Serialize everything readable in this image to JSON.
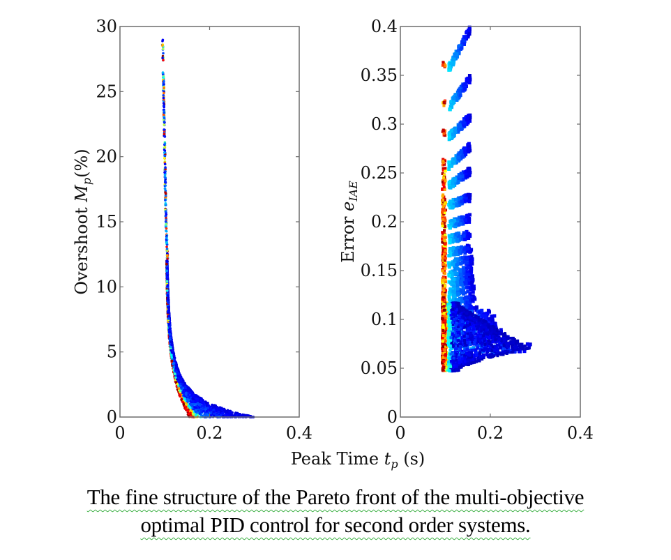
{
  "chart_data": [
    {
      "type": "scatter",
      "panel": "left",
      "title": "",
      "xlabel": "Peak Time t_p (s)",
      "ylabel": "Overshoot M_p(%)",
      "xlim": [
        0,
        0.4
      ],
      "ylim": [
        0,
        30
      ],
      "xticks": [
        0,
        0.2,
        0.4
      ],
      "xtick_labels": [
        "0",
        "0.2",
        "0.4"
      ],
      "yticks": [
        0,
        5,
        10,
        15,
        20,
        25,
        30
      ],
      "ytick_labels": [
        "0",
        "5",
        "10",
        "15",
        "20",
        "25",
        "30"
      ],
      "grid": false,
      "legend": "none",
      "colormap": "jet",
      "description": "Pareto front: overshoot decreasing steeply with peak time; isolated points near t_p 0.095-0.105 for Mp 12-29, dense band from Mp 12 down to 0 spreading to t_p 0.29",
      "series": [
        {
          "name": "pareto-front-left",
          "x": [
            0.095,
            0.096,
            0.097,
            0.098,
            0.099,
            0.1,
            0.101,
            0.102,
            0.104,
            0.106,
            0.108,
            0.11,
            0.113,
            0.116,
            0.12,
            0.125,
            0.13,
            0.137,
            0.145,
            0.155,
            0.17,
            0.19,
            0.21,
            0.24,
            0.26,
            0.28,
            0.29
          ],
          "y": [
            29,
            27.5,
            26,
            24,
            22,
            20,
            18,
            16,
            14,
            12,
            10.5,
            9,
            7.5,
            6,
            5,
            4,
            3.2,
            2.5,
            1.8,
            1.2,
            0.8,
            0.5,
            0.3,
            0.15,
            0.1,
            0.05,
            0.05
          ]
        }
      ]
    },
    {
      "type": "scatter",
      "panel": "right",
      "title": "",
      "xlabel": "Peak Time t_p (s)",
      "ylabel": "Error e_IAE",
      "xlim": [
        0,
        0.4
      ],
      "ylim": [
        0,
        0.4
      ],
      "xticks": [
        0,
        0.2,
        0.4
      ],
      "xtick_labels": [
        "0",
        "0.2",
        "0.4"
      ],
      "yticks": [
        0,
        0.05,
        0.1,
        0.15,
        0.2,
        0.25,
        0.3,
        0.35,
        0.4
      ],
      "ytick_labels": [
        "0",
        "0.05",
        "0.1",
        "0.15",
        "0.2",
        "0.25",
        "0.3",
        "0.35",
        "0.4"
      ],
      "grid": false,
      "legend": "none",
      "colormap": "jet",
      "description": "Banded Pareto front: repeated hook-shaped clusters at e_IAE levels from ~0.36 down to ~0.05, each starting near t_p 0.095 and extending right; lower bands wider, reaching t_p ~0.29 at e_IAE ~0.07",
      "bands": [
        {
          "e_iae": 0.36,
          "x_start": 0.095,
          "x_end": 0.155,
          "top": 0.4
        },
        {
          "e_iae": 0.32,
          "x_start": 0.095,
          "x_end": 0.155,
          "top": 0.35
        },
        {
          "e_iae": 0.29,
          "x_start": 0.095,
          "x_end": 0.155,
          "top": 0.31
        },
        {
          "e_iae": 0.26,
          "x_start": 0.095,
          "x_end": 0.155,
          "top": 0.28
        },
        {
          "e_iae": 0.24,
          "x_start": 0.095,
          "x_end": 0.155,
          "top": 0.255
        },
        {
          "e_iae": 0.22,
          "x_start": 0.095,
          "x_end": 0.155,
          "top": 0.228
        },
        {
          "e_iae": 0.2,
          "x_start": 0.095,
          "x_end": 0.155,
          "top": 0.207
        },
        {
          "e_iae": 0.185,
          "x_start": 0.095,
          "x_end": 0.155,
          "top": 0.19
        },
        {
          "e_iae": 0.172,
          "x_start": 0.095,
          "x_end": 0.158,
          "top": 0.175
        },
        {
          "e_iae": 0.16,
          "x_start": 0.095,
          "x_end": 0.16,
          "top": 0.162
        },
        {
          "e_iae": 0.15,
          "x_start": 0.095,
          "x_end": 0.16,
          "top": 0.151
        },
        {
          "e_iae": 0.14,
          "x_start": 0.095,
          "x_end": 0.162,
          "top": 0.14
        },
        {
          "e_iae": 0.13,
          "x_start": 0.095,
          "x_end": 0.165,
          "top": 0.13
        },
        {
          "e_iae": 0.12,
          "x_start": 0.095,
          "x_end": 0.168,
          "top": 0.12
        },
        {
          "e_iae": 0.11,
          "x_start": 0.095,
          "x_end": 0.17,
          "top": 0.11
        },
        {
          "e_iae": 0.105,
          "x_start": 0.095,
          "x_end": 0.2,
          "top": 0.105
        },
        {
          "e_iae": 0.1,
          "x_start": 0.095,
          "x_end": 0.21,
          "top": 0.1
        },
        {
          "e_iae": 0.093,
          "x_start": 0.095,
          "x_end": 0.215,
          "top": 0.093
        },
        {
          "e_iae": 0.085,
          "x_start": 0.095,
          "x_end": 0.225,
          "top": 0.085
        },
        {
          "e_iae": 0.078,
          "x_start": 0.095,
          "x_end": 0.245,
          "top": 0.078
        },
        {
          "e_iae": 0.07,
          "x_start": 0.095,
          "x_end": 0.29,
          "top": 0.07
        }
      ],
      "min_point": {
        "x": 0.115,
        "y": 0.047
      }
    }
  ],
  "figure": {
    "shared_xlabel_text": "Peak Time ",
    "shared_xlabel_symbol": "t",
    "shared_xlabel_sub": "p",
    "shared_xlabel_unit": " (s)",
    "left_ylabel_text": "Overshoot ",
    "left_ylabel_symbol": "M",
    "left_ylabel_sub": "p",
    "left_ylabel_unit": "(%)",
    "right_ylabel_text": "Error ",
    "right_ylabel_symbol": "e",
    "right_ylabel_sub": "IAE"
  },
  "caption": {
    "line1": "The fine structure of the Pareto front of the multi-objective",
    "line2": "optimal PID control for second order systems.",
    "underline_color": "#3cb043"
  }
}
